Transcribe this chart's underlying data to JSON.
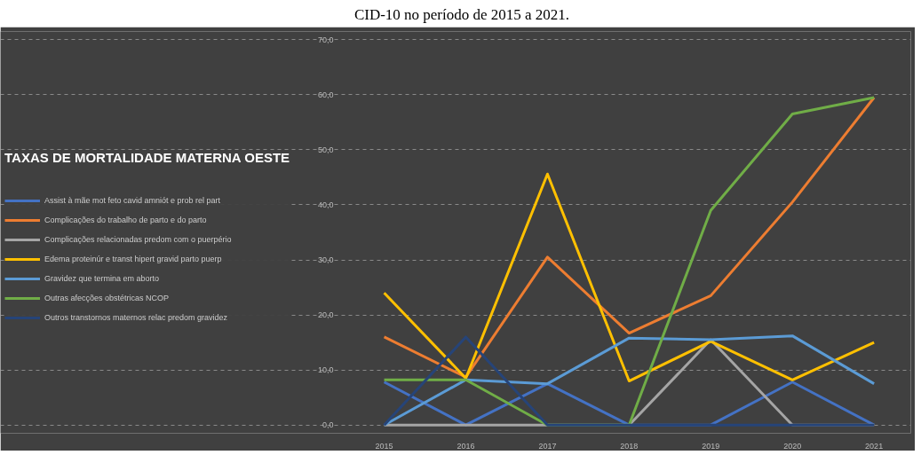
{
  "chart_data": {
    "type": "line",
    "title": "TAXAS DE MORTALIDADE MATERNA OESTE",
    "annotations": [
      "CID-10 no período de 2015 a 2021."
    ],
    "categories": [
      "2015",
      "2016",
      "2017",
      "2018",
      "2019",
      "2020",
      "2021"
    ],
    "series": [
      {
        "name": "Assist à mãe mot feto cavid amniót e prob rel part",
        "color": "#4472c4",
        "values": [
          7.8,
          0,
          7.5,
          0,
          0,
          7.8,
          0
        ]
      },
      {
        "name": "Complicações do trabalho de parto e do parto",
        "color": "#ed7d31",
        "values": [
          16,
          8.7,
          30.5,
          16.7,
          23.5,
          40.5,
          59.5
        ]
      },
      {
        "name": "Complicações relacionadas predom com o puerpério",
        "color": "#a5a5a5",
        "values": [
          0,
          0,
          0,
          0,
          15.5,
          0,
          0
        ]
      },
      {
        "name": "Edema proteinúr e transt hipert gravid parto puerp",
        "color": "#ffc000",
        "values": [
          24,
          8.5,
          45.6,
          8,
          15.2,
          8.2,
          15
        ]
      },
      {
        "name": "Gravidez que termina em aborto",
        "color": "#5b9bd5",
        "values": [
          0,
          8.2,
          7.5,
          15.8,
          15.5,
          16.2,
          7.5
        ]
      },
      {
        "name": "Outras afecções obstétricas NCOP",
        "color": "#70ad47",
        "values": [
          8.2,
          8.2,
          0,
          0,
          39,
          56.5,
          59.5
        ]
      },
      {
        "name": "Outros transtornos maternos relac predom gravidez",
        "color": "#264478",
        "values": [
          0,
          16,
          0,
          0,
          0,
          0,
          0
        ]
      }
    ],
    "ylim": [
      -1.5,
      71.5
    ],
    "yticks": [
      {
        "value": 0,
        "label": "0,0"
      },
      {
        "value": 10,
        "label": "10,0"
      },
      {
        "value": 20,
        "label": "20,0"
      },
      {
        "value": 30,
        "label": "30,0"
      },
      {
        "value": 40,
        "label": "40,0"
      },
      {
        "value": 50,
        "label": "50,0"
      },
      {
        "value": 60,
        "label": "60,0"
      },
      {
        "value": 70,
        "label": "70,0"
      }
    ],
    "grid": "y",
    "legend": "left",
    "line_style": "solid"
  }
}
